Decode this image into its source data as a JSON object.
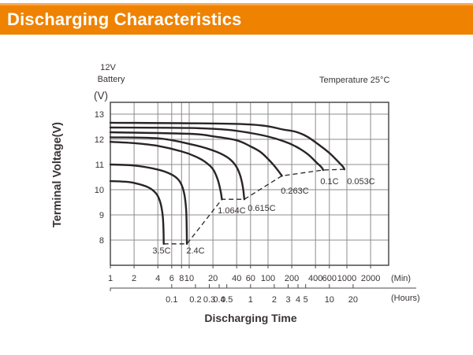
{
  "header": {
    "title": "Discharging Characteristics"
  },
  "colors": {
    "header_bg": "#EF8200",
    "header_top_edge": "#F5A84F",
    "header_text": "#FFFFFF",
    "curve": "#2A2425",
    "grid": "#8C8C8C",
    "frame": "#4A4A4A",
    "text": "#3A3335"
  },
  "annotations": {
    "battery_line1": "12V",
    "battery_line2": "Battery",
    "temperature": "Temperature 25°C",
    "y_unit": "(V)"
  },
  "chart_data": {
    "type": "line",
    "title": "Discharging Characteristics",
    "xlabel": "Discharging Time",
    "ylabel": "Terminal Voltage(V)",
    "x_scale": "log",
    "x_unit_minutes_label": "(Min)",
    "x_unit_hours_label": "(Hours)",
    "x_ticks_minutes": [
      1,
      2,
      4,
      6,
      8,
      10,
      20,
      40,
      60,
      100,
      200,
      400,
      600,
      1000,
      2000
    ],
    "x_ticks_hours": [
      0.1,
      0.2,
      0.3,
      0.4,
      0.5,
      1,
      2,
      3,
      4,
      5,
      10,
      20
    ],
    "y_ticks": [
      8,
      9,
      10,
      11,
      12,
      13
    ],
    "ylim": [
      7,
      13.5
    ],
    "grid": true,
    "series": [
      {
        "name": "0.053C",
        "points": [
          [
            1,
            12.66
          ],
          [
            50,
            12.6
          ],
          [
            160,
            12.38
          ],
          [
            224,
            12.3
          ],
          [
            316,
            12.1
          ],
          [
            480,
            11.7
          ],
          [
            630,
            11.4
          ],
          [
            800,
            11.07
          ],
          [
            900,
            10.9
          ],
          [
            930,
            10.81
          ]
        ]
      },
      {
        "name": "0.1C",
        "points": [
          [
            1,
            12.47
          ],
          [
            10,
            12.45
          ],
          [
            30,
            12.38
          ],
          [
            60,
            12.25
          ],
          [
            100,
            12.11
          ],
          [
            160,
            11.92
          ],
          [
            224,
            11.72
          ],
          [
            316,
            11.42
          ],
          [
            415,
            11.07
          ],
          [
            480,
            10.88
          ],
          [
            500,
            10.78
          ]
        ]
      },
      {
        "name": "0.263C",
        "points": [
          [
            1,
            12.28
          ],
          [
            10,
            12.22
          ],
          [
            20,
            12.12
          ],
          [
            40,
            11.96
          ],
          [
            60,
            11.72
          ],
          [
            80,
            11.5
          ],
          [
            100,
            11.22
          ],
          [
            120,
            10.95
          ],
          [
            140,
            10.68
          ],
          [
            150,
            10.55
          ]
        ]
      },
      {
        "name": "0.615C",
        "points": [
          [
            1,
            12.08
          ],
          [
            4,
            12.04
          ],
          [
            10,
            11.82
          ],
          [
            20,
            11.56
          ],
          [
            30,
            11.3
          ],
          [
            38,
            11.0
          ],
          [
            44,
            10.6
          ],
          [
            48,
            10.1
          ],
          [
            50,
            9.62
          ]
        ]
      },
      {
        "name": "1.064C",
        "points": [
          [
            1,
            11.9
          ],
          [
            2,
            11.85
          ],
          [
            4,
            11.74
          ],
          [
            8,
            11.52
          ],
          [
            12,
            11.32
          ],
          [
            16,
            11.1
          ],
          [
            20,
            10.82
          ],
          [
            23,
            10.4
          ],
          [
            25,
            9.95
          ],
          [
            26,
            9.62
          ]
        ]
      },
      {
        "name": "2.4C",
        "points": [
          [
            1,
            11.0
          ],
          [
            2,
            10.96
          ],
          [
            4,
            10.8
          ],
          [
            6,
            10.6
          ],
          [
            7.5,
            10.35
          ],
          [
            8.5,
            9.95
          ],
          [
            9.1,
            9.3
          ],
          [
            9.3,
            8.5
          ],
          [
            9.35,
            7.85
          ]
        ]
      },
      {
        "name": "3.5C",
        "points": [
          [
            1,
            10.34
          ],
          [
            1.5,
            10.32
          ],
          [
            2,
            10.27
          ],
          [
            3,
            10.1
          ],
          [
            3.8,
            9.85
          ],
          [
            4.3,
            9.5
          ],
          [
            4.6,
            9.0
          ],
          [
            4.72,
            8.4
          ],
          [
            4.75,
            7.85
          ]
        ]
      }
    ],
    "cutoff_line": {
      "style": "dashed",
      "points": [
        [
          4.75,
          7.85
        ],
        [
          9.35,
          7.85
        ],
        [
          26,
          9.62
        ],
        [
          50,
          9.62
        ],
        [
          150,
          10.55
        ],
        [
          500,
          10.78
        ],
        [
          930,
          10.81
        ]
      ]
    }
  }
}
